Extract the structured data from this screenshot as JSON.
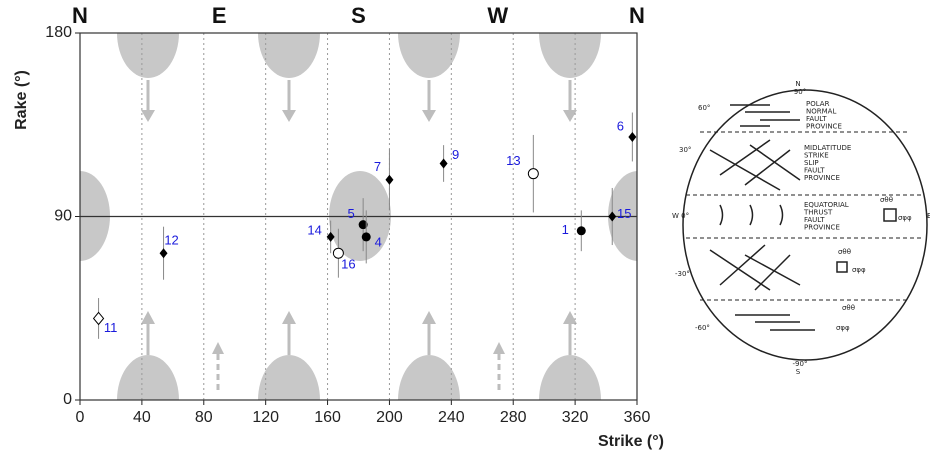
{
  "chart_data": {
    "type": "scatter",
    "x_label": "Strike (°)",
    "y_label": "Rake (°)",
    "xlim": [
      0,
      360
    ],
    "ylim": [
      0,
      180
    ],
    "xticks": [
      0,
      40,
      80,
      120,
      160,
      200,
      240,
      280,
      320,
      360
    ],
    "yticks": [
      0,
      90,
      180
    ],
    "compass_ticks": [
      {
        "value": 0,
        "label": "N"
      },
      {
        "value": 90,
        "label": "E"
      },
      {
        "value": 180,
        "label": "S"
      },
      {
        "value": 270,
        "label": "W"
      },
      {
        "value": 360,
        "label": "N"
      }
    ],
    "grid": true,
    "color": "#000000",
    "label_color": "#1a1adc",
    "series": [
      {
        "marker": "filled-diamond",
        "x": [
          54,
          162,
          200,
          235,
          344,
          357
        ],
        "values": [
          72,
          80,
          108,
          116,
          90,
          129
        ],
        "errors": [
          13,
          8,
          15,
          9,
          14,
          12
        ],
        "labels": [
          "12",
          "14",
          "7",
          "9",
          "15",
          "6"
        ]
      },
      {
        "marker": "filled-circle",
        "x": [
          183,
          185,
          324
        ],
        "values": [
          86,
          80,
          83
        ],
        "errors": [
          13,
          13,
          10
        ],
        "labels": [
          "5",
          "4",
          "1"
        ]
      },
      {
        "marker": "open-circle",
        "x": [
          167,
          293
        ],
        "values": [
          72,
          111
        ],
        "errors": [
          12,
          19
        ],
        "labels": [
          "16",
          "13"
        ]
      },
      {
        "marker": "open-diamond",
        "x": [
          12
        ],
        "values": [
          40
        ],
        "errors": [
          10
        ],
        "labels": [
          "11"
        ]
      }
    ]
  },
  "inset": {
    "top": "N",
    "top_angle": "90°",
    "bottom_angle": "-90°",
    "bottom": "S",
    "lat_60": "60°",
    "lat_30": "30°",
    "west": "W 0°",
    "east": "E",
    "lat_m30": "-30°",
    "lat_m60": "-60°",
    "polar": [
      "POLAR",
      "NORMAL",
      "FAULT",
      "PROVINCE"
    ],
    "midlat": [
      "MIDLATITUDE",
      "STRIKE",
      "SLIP",
      "FAULT",
      "PROVINCE"
    ],
    "equat": [
      "EQUATORIAL",
      "THRUST",
      "FAULT",
      "PROVINCE"
    ],
    "stress_tt": "σθθ",
    "stress_pp": "σφφ"
  }
}
